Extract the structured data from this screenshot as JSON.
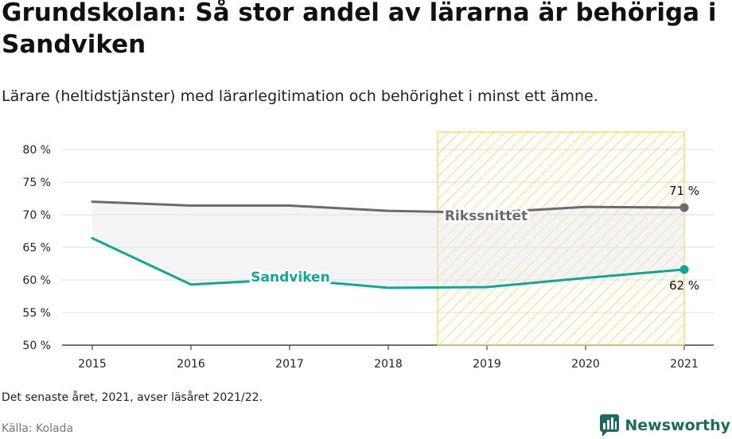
{
  "header": {
    "title": "Grundskolan: Så stor andel av lärarna är behöriga i Sandviken",
    "subtitle": "Lärare (heltidstjänster) med lärarlegitimation och behörighet i minst ett ämne."
  },
  "footer": {
    "note": "Det senaste året, 2021, avser läsåret 2021/22.",
    "source": "Källa: Kolada",
    "brand": "Newsworthy",
    "brand_icon": "bar-chart-speech-bubble-icon"
  },
  "colors": {
    "sandviken": "#14a595",
    "riks": "#6b6b6f",
    "highlight_stroke": "#f4cf5e",
    "brand": "#1f6a5d"
  },
  "chart_data": {
    "type": "line",
    "x": [
      "2015",
      "2016",
      "2017",
      "2018",
      "2019",
      "2020",
      "2021"
    ],
    "ylim": [
      50,
      80
    ],
    "yticks": [
      50,
      55,
      60,
      65,
      70,
      75,
      80
    ],
    "ytick_labels": [
      "50 %",
      "55 %",
      "60 %",
      "65 %",
      "70 %",
      "75 %",
      "80 %"
    ],
    "grid": true,
    "highlight_range": [
      "2019",
      "2021"
    ],
    "series": [
      {
        "name": "Rikssnittet",
        "values": [
          72.0,
          71.4,
          71.4,
          70.6,
          70.3,
          71.2,
          71.1
        ],
        "end_label": "71 %"
      },
      {
        "name": "Sandviken",
        "values": [
          66.4,
          59.3,
          60.1,
          58.8,
          58.9,
          60.3,
          61.6
        ],
        "end_label": "62 %"
      }
    ]
  }
}
